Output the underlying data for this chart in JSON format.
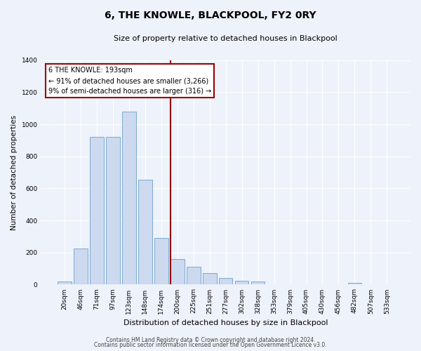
{
  "title": "6, THE KNOWLE, BLACKPOOL, FY2 0RY",
  "subtitle": "Size of property relative to detached houses in Blackpool",
  "xlabel": "Distribution of detached houses by size in Blackpool",
  "ylabel": "Number of detached properties",
  "bar_color": "#ccd9ee",
  "bar_edge_color": "#7aaad4",
  "bins": [
    "20sqm",
    "46sqm",
    "71sqm",
    "97sqm",
    "123sqm",
    "148sqm",
    "174sqm",
    "200sqm",
    "225sqm",
    "251sqm",
    "277sqm",
    "302sqm",
    "328sqm",
    "353sqm",
    "379sqm",
    "405sqm",
    "430sqm",
    "456sqm",
    "482sqm",
    "507sqm",
    "533sqm"
  ],
  "values": [
    20,
    225,
    920,
    920,
    1080,
    655,
    290,
    160,
    110,
    70,
    40,
    25,
    20,
    0,
    0,
    0,
    0,
    0,
    10,
    0,
    0
  ],
  "vline_idx": 7,
  "vline_color": "#990000",
  "annotation_title": "6 THE KNOWLE: 193sqm",
  "annotation_line1": "← 91% of detached houses are smaller (3,266)",
  "annotation_line2": "9% of semi-detached houses are larger (316) →",
  "annotation_box_color": "#ffffff",
  "annotation_box_edge": "#990000",
  "ylim": [
    0,
    1400
  ],
  "yticks": [
    0,
    200,
    400,
    600,
    800,
    1000,
    1200,
    1400
  ],
  "footer1": "Contains HM Land Registry data © Crown copyright and database right 2024.",
  "footer2": "Contains public sector information licensed under the Open Government Licence v3.0.",
  "background_color": "#eef2fa",
  "grid_color": "#ffffff",
  "title_fontsize": 10,
  "subtitle_fontsize": 8,
  "xlabel_fontsize": 8,
  "ylabel_fontsize": 7.5,
  "tick_fontsize": 6.5,
  "footer_fontsize": 5.5
}
